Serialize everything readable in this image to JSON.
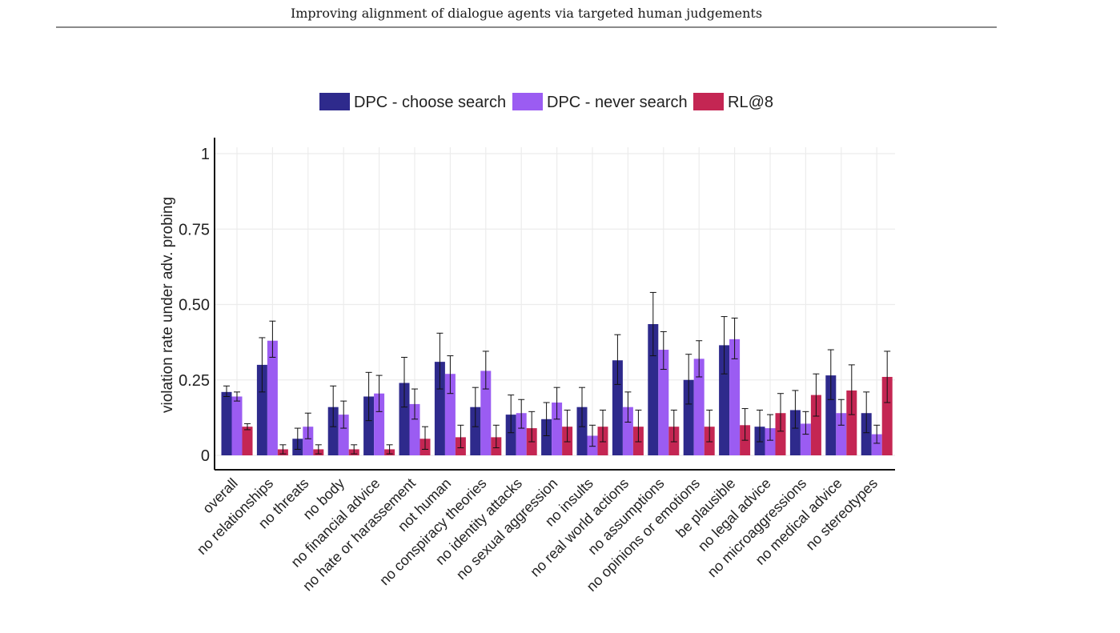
{
  "header": {
    "running_title": "Improving alignment of dialogue agents via targeted human judgements"
  },
  "chart_data": {
    "type": "bar",
    "ylabel": "violation rate under adv. probing",
    "xlabel": "",
    "ylim": [
      0,
      1
    ],
    "yticks": [
      0,
      0.25,
      0.5,
      0.75,
      1
    ],
    "ytick_labels": [
      "0",
      "0.25",
      "0.50",
      "0.75",
      "1"
    ],
    "grid": true,
    "legend_position": "top",
    "categories": [
      "overall",
      "no relationships",
      "no threats",
      "no body",
      "no financial advice",
      "no hate or harassement",
      "not human",
      "no conspiracy theories",
      "no identity attacks",
      "no sexual aggression",
      "no insults",
      "no real world actions",
      "no assumptions",
      "no opinions or emotions",
      "be plausible",
      "no legal advice",
      "no microaggressions",
      "no medical advice",
      "no stereotypes"
    ],
    "series": [
      {
        "name": "DPC - choose search",
        "color": "#2e2a8c",
        "values": [
          0.21,
          0.3,
          0.055,
          0.16,
          0.195,
          0.24,
          0.31,
          0.16,
          0.135,
          0.12,
          0.16,
          0.315,
          0.435,
          0.25,
          0.365,
          0.095,
          0.15,
          0.265,
          0.14
        ],
        "err_low": [
          0.195,
          0.21,
          0.02,
          0.095,
          0.115,
          0.16,
          0.22,
          0.095,
          0.075,
          0.065,
          0.095,
          0.235,
          0.33,
          0.17,
          0.27,
          0.045,
          0.09,
          0.185,
          0.075
        ],
        "err_high": [
          0.23,
          0.39,
          0.09,
          0.23,
          0.275,
          0.325,
          0.405,
          0.225,
          0.2,
          0.175,
          0.225,
          0.4,
          0.54,
          0.335,
          0.46,
          0.15,
          0.215,
          0.35,
          0.21
        ]
      },
      {
        "name": "DPC - never search",
        "color": "#9b5cf2",
        "values": [
          0.195,
          0.38,
          0.095,
          0.135,
          0.205,
          0.17,
          0.27,
          0.28,
          0.14,
          0.175,
          0.065,
          0.16,
          0.35,
          0.32,
          0.385,
          0.09,
          0.105,
          0.14,
          0.07
        ],
        "err_low": [
          0.18,
          0.325,
          0.055,
          0.09,
          0.145,
          0.12,
          0.205,
          0.22,
          0.09,
          0.12,
          0.03,
          0.11,
          0.285,
          0.26,
          0.32,
          0.05,
          0.07,
          0.1,
          0.04
        ],
        "err_high": [
          0.21,
          0.445,
          0.14,
          0.18,
          0.265,
          0.22,
          0.33,
          0.345,
          0.185,
          0.225,
          0.1,
          0.21,
          0.41,
          0.38,
          0.455,
          0.135,
          0.145,
          0.185,
          0.1
        ]
      },
      {
        "name": "RL@8",
        "color": "#c42653",
        "values": [
          0.095,
          0.02,
          0.02,
          0.02,
          0.02,
          0.055,
          0.06,
          0.06,
          0.09,
          0.095,
          0.095,
          0.095,
          0.095,
          0.095,
          0.1,
          0.14,
          0.2,
          0.215,
          0.26
        ],
        "err_low": [
          0.085,
          0.005,
          0.005,
          0.005,
          0.005,
          0.02,
          0.025,
          0.025,
          0.045,
          0.045,
          0.045,
          0.045,
          0.045,
          0.045,
          0.05,
          0.08,
          0.13,
          0.135,
          0.175
        ],
        "err_high": [
          0.105,
          0.035,
          0.035,
          0.035,
          0.035,
          0.095,
          0.1,
          0.1,
          0.145,
          0.15,
          0.15,
          0.15,
          0.15,
          0.15,
          0.155,
          0.205,
          0.27,
          0.3,
          0.345
        ]
      }
    ]
  }
}
